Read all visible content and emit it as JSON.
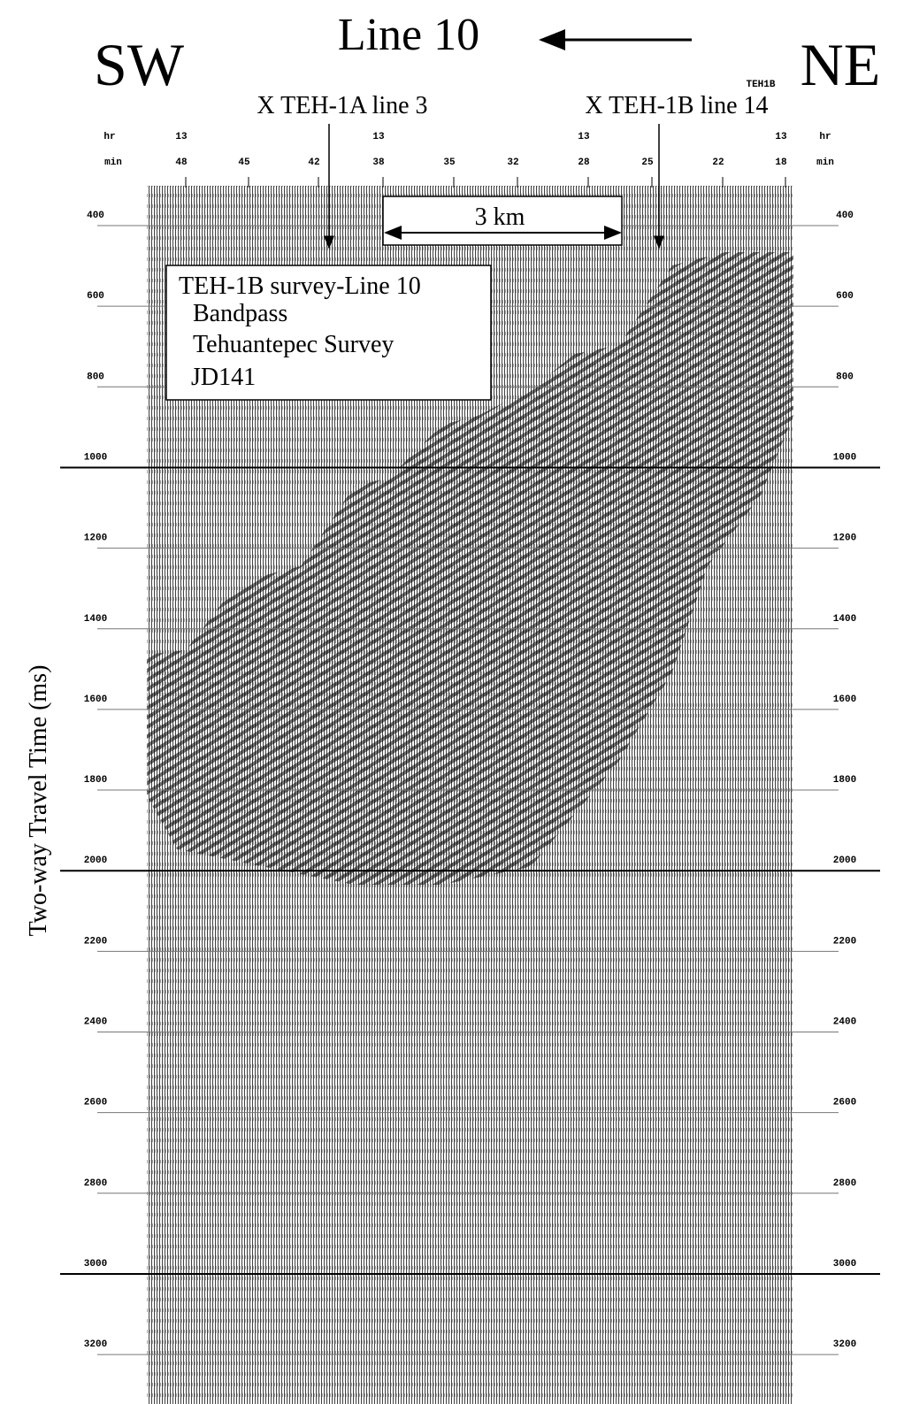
{
  "header": {
    "title": "Line 10",
    "left_direction": "SW",
    "right_direction": "NE",
    "station": "TEH1B"
  },
  "crossings": [
    "X TEH-1A line 3",
    "X TEH-1B line 14"
  ],
  "scale_bar": "3 km",
  "legend": {
    "lines": [
      "TEH-1B survey-Line 10",
      "Bandpass",
      "Tehuantepec Survey",
      "JD141"
    ]
  },
  "x_axis": {
    "hour_label": "hr",
    "minute_label": "min",
    "hours": [
      "13",
      "13",
      "13",
      "13"
    ],
    "minutes": [
      "48",
      "45",
      "42",
      "38",
      "35",
      "32",
      "28",
      "25",
      "22",
      "18"
    ]
  },
  "y_axis": {
    "label": "Two-way Travel Time (ms)",
    "ticks": [
      400,
      600,
      800,
      1000,
      1200,
      1400,
      1600,
      1800,
      2000,
      2200,
      2400,
      2600,
      2800,
      3000,
      3200
    ]
  }
}
